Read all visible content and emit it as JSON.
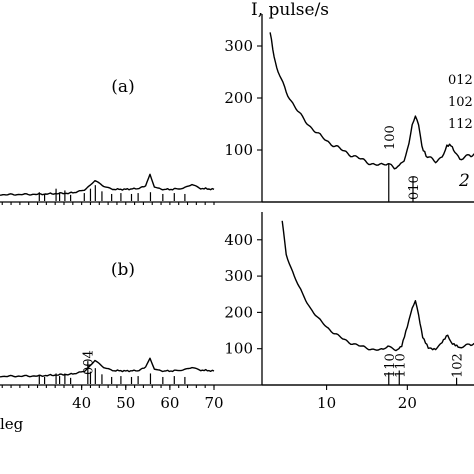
{
  "chart_data": [
    {
      "id": "left-a",
      "type": "line",
      "panel_label": "(a)",
      "x_range": [
        2,
        70
      ],
      "y_range": [
        0,
        380
      ],
      "x_tick_labels_shown": [],
      "series": [
        {
          "role": "pattern",
          "x": [
            2,
            10,
            20,
            30,
            38,
            41,
            43,
            45,
            47,
            50,
            53,
            54.5,
            55.5,
            56.5,
            58,
            61,
            63,
            65,
            67,
            70
          ],
          "y": [
            15,
            15,
            16,
            17,
            20,
            28,
            48,
            36,
            28,
            28,
            30,
            36,
            62,
            34,
            28,
            28,
            30,
            40,
            30,
            28
          ]
        }
      ],
      "sticks": [
        {
          "x": 30.4,
          "h": 10
        },
        {
          "x": 31.6,
          "h": 8
        },
        {
          "x": 34.2,
          "h": 14
        },
        {
          "x": 35.0,
          "h": 9
        },
        {
          "x": 36.2,
          "h": 12
        },
        {
          "x": 37.5,
          "h": 7
        },
        {
          "x": 40.6,
          "h": 9
        },
        {
          "x": 42.0,
          "h": 14
        },
        {
          "x": 43.1,
          "h": 18
        },
        {
          "x": 44.6,
          "h": 11
        },
        {
          "x": 46.8,
          "h": 8
        },
        {
          "x": 48.9,
          "h": 9
        },
        {
          "x": 51.3,
          "h": 8
        },
        {
          "x": 52.8,
          "h": 9
        },
        {
          "x": 55.6,
          "h": 10
        },
        {
          "x": 58.4,
          "h": 8
        },
        {
          "x": 61.0,
          "h": 9
        },
        {
          "x": 63.4,
          "h": 8
        }
      ]
    },
    {
      "id": "left-b",
      "type": "line",
      "panel_label": "(b)",
      "x_range": [
        2,
        70
      ],
      "y_range": [
        0,
        380
      ],
      "x_tick_labels_shown": [
        "40",
        "50",
        "60",
        "70"
      ],
      "x_axis_label_fragment": "leg",
      "series": [
        {
          "role": "pattern",
          "x": [
            2,
            10,
            20,
            30,
            38,
            41,
            43,
            45,
            47,
            50,
            53,
            54.5,
            55.5,
            56.5,
            58,
            61,
            63,
            65,
            67,
            70
          ],
          "y": [
            18,
            18,
            19,
            20,
            24,
            32,
            55,
            40,
            32,
            31,
            32,
            40,
            60,
            36,
            31,
            31,
            33,
            40,
            33,
            31
          ]
        }
      ],
      "peak_labels": [
        {
          "text": "004",
          "x": 41.5
        }
      ],
      "sticks": [
        {
          "x": 30.4,
          "h": 10
        },
        {
          "x": 31.6,
          "h": 8
        },
        {
          "x": 34.2,
          "h": 12
        },
        {
          "x": 35.0,
          "h": 9
        },
        {
          "x": 36.2,
          "h": 12
        },
        {
          "x": 37.5,
          "h": 7
        },
        {
          "x": 41.4,
          "h": 26
        },
        {
          "x": 42.0,
          "h": 14
        },
        {
          "x": 43.1,
          "h": 18
        },
        {
          "x": 44.6,
          "h": 11
        },
        {
          "x": 46.8,
          "h": 8
        },
        {
          "x": 48.9,
          "h": 9
        },
        {
          "x": 51.3,
          "h": 8
        },
        {
          "x": 52.8,
          "h": 9
        },
        {
          "x": 55.6,
          "h": 12
        },
        {
          "x": 58.4,
          "h": 8
        },
        {
          "x": 61.0,
          "h": 9
        },
        {
          "x": 63.4,
          "h": 8
        }
      ]
    },
    {
      "id": "right-1",
      "type": "line",
      "y_title": "I, pulse/s",
      "x_range": [
        2,
        29
      ],
      "y_range": [
        0,
        350
      ],
      "y_ticks": [
        100,
        200,
        300
      ],
      "y_tick_labels": [
        "100",
        "200",
        "300"
      ],
      "series_number_label": "2",
      "series": [
        {
          "role": "pattern",
          "x": [
            3,
            3.5,
            4,
            5,
            6,
            7,
            8,
            9,
            10,
            11,
            12,
            13,
            14,
            15,
            16,
            17,
            17.6,
            18.0,
            18.4,
            19.0,
            19.6,
            20.2,
            20.6,
            21.0,
            21.4,
            21.8,
            22.5,
            23.5,
            24.3,
            24.9,
            25.4,
            25.9,
            26.5,
            27.5,
            29
          ],
          "y": [
            330,
            280,
            250,
            212,
            185,
            162,
            145,
            130,
            118,
            108,
            99,
            91,
            84,
            77,
            72,
            70,
            76,
            72,
            66,
            67,
            80,
            112,
            152,
            165,
            145,
            108,
            86,
            78,
            88,
            108,
            110,
            96,
            84,
            88,
            96
          ]
        }
      ],
      "sticks": [
        {
          "x": 17.7,
          "h": 75
        },
        {
          "x": 20.7,
          "h": 48
        }
      ],
      "peak_labels": [
        {
          "text": "100",
          "x": 17.7
        },
        {
          "text": "010",
          "x": 20.7
        },
        {
          "text": "012",
          "x": 27.3,
          "line": 1
        },
        {
          "text": "102",
          "x": 27.3,
          "line": 2
        },
        {
          "text": "112",
          "x": 27.3,
          "line": 3
        }
      ]
    },
    {
      "id": "right-2",
      "type": "line",
      "x_range": [
        2,
        29
      ],
      "y_range": [
        0,
        460
      ],
      "y_ticks": [
        100,
        200,
        300,
        400
      ],
      "y_tick_labels": [
        "100",
        "200",
        "300",
        "400"
      ],
      "x_ticks": [
        10,
        20
      ],
      "x_tick_labels": [
        "10",
        "20"
      ],
      "series": [
        {
          "role": "pattern",
          "x": [
            4.5,
            5,
            6,
            7,
            8,
            9,
            10,
            11,
            12,
            13,
            14,
            15,
            16,
            17,
            17.6,
            18.0,
            18.6,
            19.3,
            20.0,
            20.6,
            21.0,
            21.4,
            21.9,
            22.6,
            23.5,
            24.3,
            25.0,
            25.6,
            26.3,
            27.5,
            29
          ],
          "y": [
            455,
            360,
            300,
            250,
            212,
            182,
            160,
            142,
            127,
            116,
            108,
            102,
            97,
            96,
            110,
            104,
            96,
            108,
            160,
            215,
            232,
            190,
            130,
            102,
            100,
            118,
            140,
            112,
            104,
            110,
            118
          ]
        }
      ],
      "sticks": [
        {
          "x": 17.7,
          "h": 35
        },
        {
          "x": 19.0,
          "h": 40
        },
        {
          "x": 26.1,
          "h": 20
        }
      ],
      "peak_labels": [
        {
          "text": "110",
          "x": 17.7
        },
        {
          "text": "110",
          "x": 19.0
        },
        {
          "text": "102",
          "x": 26.1
        }
      ]
    }
  ]
}
